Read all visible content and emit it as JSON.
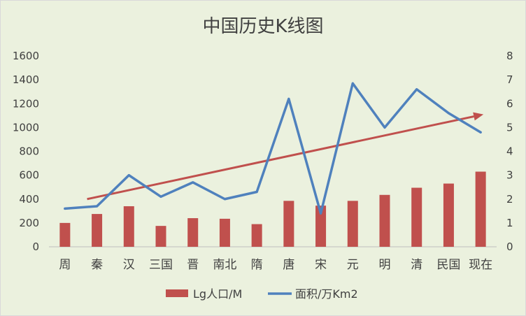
{
  "chart_data": {
    "type": "bar",
    "title": "中国历史K线图",
    "categories": [
      "周",
      "秦",
      "汉",
      "三国",
      "晋",
      "南北",
      "隋",
      "唐",
      "宋",
      "元",
      "明",
      "清",
      "民国",
      "现在"
    ],
    "series": [
      {
        "name": "Lg人口/M",
        "type": "bar",
        "axis": "left",
        "color": "#c0504d",
        "values": [
          200,
          275,
          340,
          175,
          240,
          235,
          190,
          385,
          345,
          385,
          435,
          495,
          530,
          630
        ]
      },
      {
        "name": "面积/万Km2",
        "type": "line",
        "axis": "right",
        "color": "#4f81bd",
        "values": [
          1.6,
          1.7,
          3.0,
          2.1,
          2.7,
          2.0,
          2.3,
          6.2,
          1.4,
          6.85,
          5.0,
          6.6,
          5.6,
          4.8
        ]
      }
    ],
    "trend_arrow": {
      "color": "#c0504d",
      "from": {
        "category": "秦",
        "y": 400
      },
      "to": {
        "category": "现在",
        "y": 1110
      }
    },
    "y_left": {
      "min": 0,
      "max": 1600,
      "ticks": [
        "0",
        "200",
        "400",
        "600",
        "800",
        "1000",
        "1200",
        "1400",
        "1600"
      ]
    },
    "y_right": {
      "min": 0,
      "max": 8,
      "ticks": [
        "0",
        "1",
        "2",
        "3",
        "4",
        "5",
        "6",
        "7",
        "8"
      ]
    },
    "grid": false,
    "legend_position": "bottom",
    "background": "#ebf1de"
  }
}
